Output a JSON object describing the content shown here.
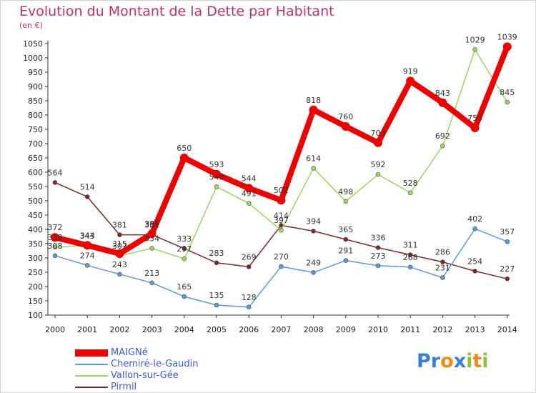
{
  "title": "Evolution du Montant de la Dette par Habitant",
  "subtitle": "(en €)",
  "logo": {
    "letters": [
      "P",
      "r",
      "o",
      "x",
      "i",
      "t",
      "i"
    ],
    "colors": [
      "#3b7ed8",
      "#3b7ed8",
      "#f08a1a",
      "#3b7ed8",
      "#8bc43a",
      "#f08a1a",
      "#8bc43a"
    ]
  },
  "chart_data": {
    "type": "line",
    "title": "Evolution du Montant de la Dette par Habitant",
    "ylabel": "(en €)",
    "xlabel": "",
    "x": [
      "2000",
      "2001",
      "2002",
      "2003",
      "2004",
      "2005",
      "2006",
      "2007",
      "2008",
      "2009",
      "2010",
      "2011",
      "2012",
      "2013",
      "2014"
    ],
    "ylim": [
      100,
      1050
    ],
    "yticks": [
      100,
      150,
      200,
      250,
      300,
      350,
      400,
      450,
      500,
      550,
      600,
      650,
      700,
      750,
      800,
      850,
      900,
      950,
      1000,
      1050
    ],
    "grid": false,
    "legend_position": "bottom-left",
    "series": [
      {
        "name": "MAIGNé",
        "color": "#ee0000",
        "values": [
          372,
          344,
          315,
          385,
          650,
          593,
          544,
          502,
          818,
          760,
          703,
          919,
          843,
          755,
          1039
        ]
      },
      {
        "name": "Chemiré-le-Gaudin",
        "color": "#5b9bd5",
        "values": [
          308,
          274,
          243,
          213,
          165,
          135,
          128,
          270,
          249,
          291,
          273,
          268,
          231,
          402,
          357
        ]
      },
      {
        "name": "Vallon-sur-Gée",
        "color": "#99d65c",
        "values": [
          338,
          343,
          307,
          334,
          297,
          549,
          491,
          397,
          614,
          498,
          592,
          528,
          692,
          1029,
          845
        ]
      },
      {
        "name": "Pirmil",
        "color": "#7a2a2a",
        "values": [
          564,
          514,
          381,
          381,
          333,
          283,
          269,
          414,
          394,
          365,
          336,
          311,
          286,
          254,
          227
        ]
      }
    ]
  }
}
